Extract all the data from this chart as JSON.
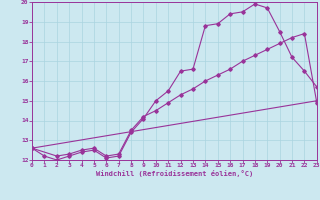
{
  "xlabel": "Windchill (Refroidissement éolien,°C)",
  "bg_color": "#cce8f0",
  "line_color": "#993399",
  "grid_color": "#aad4e0",
  "xlim": [
    0,
    23
  ],
  "ylim": [
    12,
    20
  ],
  "xticks": [
    0,
    1,
    2,
    3,
    4,
    5,
    6,
    7,
    8,
    9,
    10,
    11,
    12,
    13,
    14,
    15,
    16,
    17,
    18,
    19,
    20,
    21,
    22,
    23
  ],
  "yticks": [
    12,
    13,
    14,
    15,
    16,
    17,
    18,
    19,
    20
  ],
  "curve1_x": [
    0,
    1,
    2,
    3,
    4,
    5,
    6,
    7,
    8,
    9,
    10,
    11,
    12,
    13,
    14,
    15,
    16,
    17,
    18,
    19,
    20,
    21,
    22,
    23
  ],
  "curve1_y": [
    12.6,
    12.2,
    12.0,
    12.2,
    12.4,
    12.5,
    12.1,
    12.2,
    13.4,
    14.1,
    15.0,
    15.5,
    16.5,
    16.6,
    18.8,
    18.9,
    19.4,
    19.5,
    19.9,
    19.7,
    18.5,
    17.2,
    16.5,
    15.7
  ],
  "curve2_x": [
    0,
    2,
    3,
    4,
    5,
    6,
    7,
    8,
    9,
    10,
    11,
    12,
    13,
    14,
    15,
    16,
    17,
    18,
    19,
    20,
    21,
    22,
    23
  ],
  "curve2_y": [
    12.6,
    12.2,
    12.3,
    12.5,
    12.6,
    12.2,
    12.3,
    13.5,
    14.2,
    14.5,
    14.9,
    15.3,
    15.6,
    16.0,
    16.3,
    16.6,
    17.0,
    17.3,
    17.6,
    17.9,
    18.2,
    18.4,
    14.9
  ],
  "curve3_x": [
    0,
    23
  ],
  "curve3_y": [
    12.6,
    15.0
  ],
  "marker": "D",
  "markersize": 1.8,
  "linewidth": 0.8
}
